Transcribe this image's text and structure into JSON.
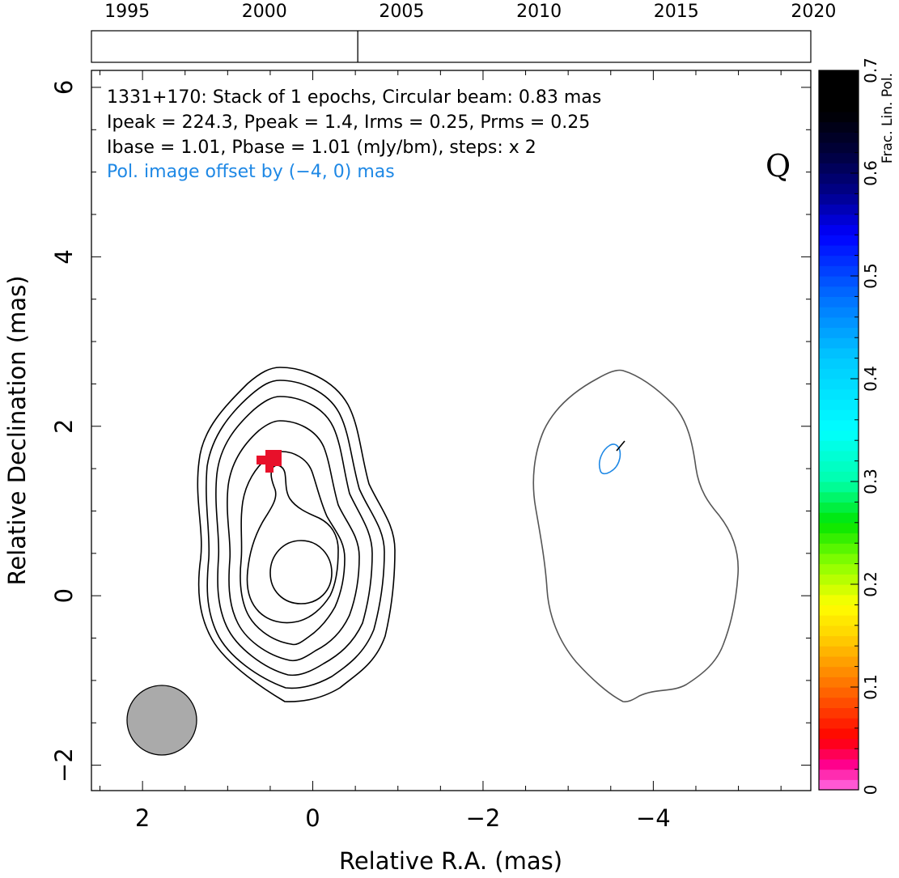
{
  "timeline": {
    "years": [
      "1995",
      "2000",
      "2005",
      "2010",
      "2015",
      "2020"
    ],
    "year_range": [
      1993.7,
      2019.9
    ],
    "epoch_marks": [
      2003.4
    ]
  },
  "chart_data": {
    "type": "contour",
    "source": "1331+170",
    "xlabel": "Relative R.A. (mas)",
    "ylabel": "Relative Declination (mas)",
    "xlim": [
      2.6,
      -5.85
    ],
    "ylim": [
      -2.3,
      6.2
    ],
    "x_ticks": [
      2,
      0,
      -2,
      -4
    ],
    "x_tick_labels": [
      "2",
      "0",
      "−2",
      "−4"
    ],
    "y_ticks": [
      -2,
      0,
      2,
      4,
      6
    ],
    "y_tick_labels": [
      "−2",
      "0",
      "2",
      "4",
      "6"
    ],
    "annotation_lines": [
      "1331+170: Stack of 1 epochs, Circular beam: 0.83 mas",
      "Ipeak = 224.3, Ppeak = 1.4, Irms = 0.25, Prms = 0.25",
      "Ibase = 1.01, Pbase = 1.01 (mJy/bm), steps: x 2"
    ],
    "offset_note": "Pol. image offset by (−4, 0) mas",
    "band_label": "Q",
    "beam_diameter_mas": 0.83,
    "colorbar": {
      "label": "Frac. Lin. Pol.",
      "range": [
        0,
        0.7
      ],
      "ticks": [
        0,
        0.1,
        0.2,
        0.3,
        0.4,
        0.5,
        0.6,
        0.7
      ],
      "tick_labels": [
        "0",
        "0.1",
        "0.2",
        "0.3",
        "0.4",
        "0.5",
        "0.6",
        "0.7"
      ]
    },
    "colors": {
      "contour": "#000000",
      "pol_contour": "#555555",
      "pol_feature": "#1e88e5",
      "offset_text": "#1e88e5",
      "pol_pixels": "#e8102a",
      "beam_fill": "#aaaaaa"
    }
  }
}
